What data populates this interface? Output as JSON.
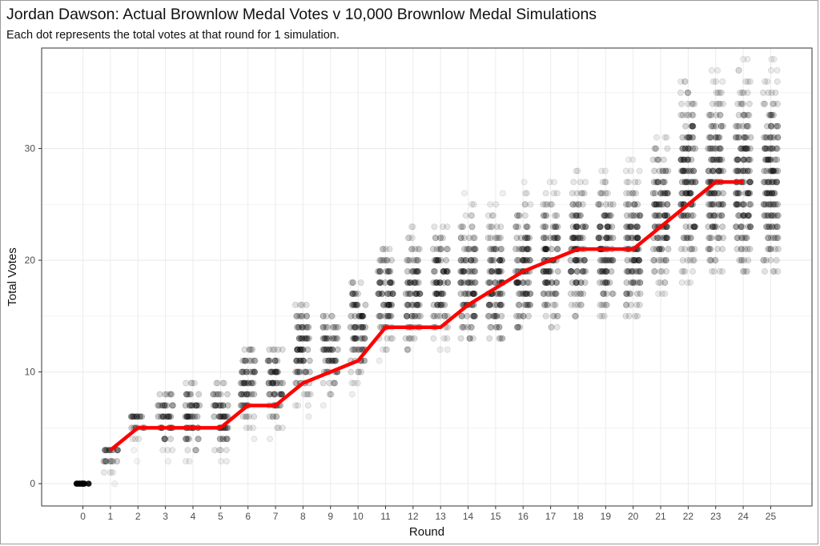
{
  "title": "Jordan Dawson: Actual Brownlow Medal Votes v 10,000 Brownlow Medal Simulations",
  "subtitle": "Each dot represents the total votes at that round for 1 simulation.",
  "colors": {
    "actual_line": "#ff0000",
    "sim_dots": "#000000",
    "grid": "#ebebeb",
    "panel_border": "#333333"
  },
  "chart_data": {
    "type": "scatter",
    "title": "Jordan Dawson: Actual Brownlow Medal Votes v 10,000 Brownlow Medal Simulations",
    "subtitle": "Each dot represents the total votes at that round for 1 simulation.",
    "xlabel": "Round",
    "ylabel": "Total Votes",
    "xlim": [
      -1.5,
      26.5
    ],
    "ylim": [
      -2,
      39
    ],
    "x_ticks": [
      0,
      1,
      2,
      3,
      4,
      5,
      6,
      7,
      8,
      9,
      10,
      11,
      12,
      13,
      14,
      15,
      16,
      17,
      18,
      19,
      20,
      21,
      22,
      23,
      24,
      25
    ],
    "y_ticks": [
      0,
      10,
      20,
      30
    ],
    "grid": true,
    "series": [
      {
        "name": "Actual",
        "type": "line",
        "x": [
          1,
          2,
          3,
          4,
          5,
          6,
          7,
          8,
          9,
          10,
          11,
          12,
          13,
          14,
          15,
          16,
          17,
          18,
          19,
          20,
          21,
          22,
          23,
          24
        ],
        "y": [
          3,
          5,
          5,
          5,
          5,
          7,
          7,
          9,
          10,
          11,
          14,
          14,
          14,
          16,
          17.5,
          19,
          20,
          21,
          21,
          21,
          23,
          25,
          27,
          27
        ]
      },
      {
        "name": "Simulations",
        "type": "scatter_distribution",
        "rounds": [
          {
            "x": 0,
            "min": 0,
            "max": 0,
            "mode": 0
          },
          {
            "x": 1,
            "min": 0,
            "max": 3,
            "mode": 3
          },
          {
            "x": 2,
            "min": 2,
            "max": 6,
            "mode": 6
          },
          {
            "x": 3,
            "min": 2,
            "max": 8,
            "mode": 6
          },
          {
            "x": 4,
            "min": 2,
            "max": 9,
            "mode": 6
          },
          {
            "x": 5,
            "min": 2,
            "max": 9,
            "mode": 6
          },
          {
            "x": 6,
            "min": 4,
            "max": 12,
            "mode": 9
          },
          {
            "x": 7,
            "min": 4,
            "max": 12,
            "mode": 9
          },
          {
            "x": 8,
            "min": 6,
            "max": 16,
            "mode": 12
          },
          {
            "x": 9,
            "min": 7,
            "max": 15,
            "mode": 12
          },
          {
            "x": 10,
            "min": 8,
            "max": 18,
            "mode": 14
          },
          {
            "x": 11,
            "min": 11,
            "max": 21,
            "mode": 17
          },
          {
            "x": 12,
            "min": 12,
            "max": 23,
            "mode": 17
          },
          {
            "x": 13,
            "min": 12,
            "max": 23,
            "mode": 18
          },
          {
            "x": 14,
            "min": 13,
            "max": 26,
            "mode": 18
          },
          {
            "x": 15,
            "min": 13,
            "max": 26,
            "mode": 18
          },
          {
            "x": 16,
            "min": 14,
            "max": 27,
            "mode": 19
          },
          {
            "x": 17,
            "min": 14,
            "max": 27,
            "mode": 20
          },
          {
            "x": 18,
            "min": 15,
            "max": 28,
            "mode": 21
          },
          {
            "x": 19,
            "min": 15,
            "max": 28,
            "mode": 21
          },
          {
            "x": 20,
            "min": 15,
            "max": 29,
            "mode": 21
          },
          {
            "x": 21,
            "min": 17,
            "max": 31,
            "mode": 24
          },
          {
            "x": 22,
            "min": 18,
            "max": 36,
            "mode": 27
          },
          {
            "x": 23,
            "min": 19,
            "max": 37,
            "mode": 27
          },
          {
            "x": 24,
            "min": 19,
            "max": 38,
            "mode": 27
          },
          {
            "x": 25,
            "min": 19,
            "max": 38,
            "mode": 27
          }
        ]
      }
    ]
  }
}
